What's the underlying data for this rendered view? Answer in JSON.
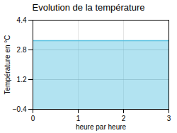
{
  "chart_data": {
    "type": "area",
    "title": "Evolution de la température",
    "xlabel": "heure par heure",
    "ylabel": "Température en °C",
    "x": [
      0,
      3
    ],
    "values": [
      3.3,
      3.3
    ],
    "color": "#55c0e0",
    "xlim": [
      0,
      3
    ],
    "ylim": [
      -0.4,
      4.4
    ],
    "xticks": [
      0,
      1,
      2,
      3
    ],
    "yticks": [
      -0.4,
      1.2,
      2.8,
      4.4
    ],
    "grid": true
  }
}
